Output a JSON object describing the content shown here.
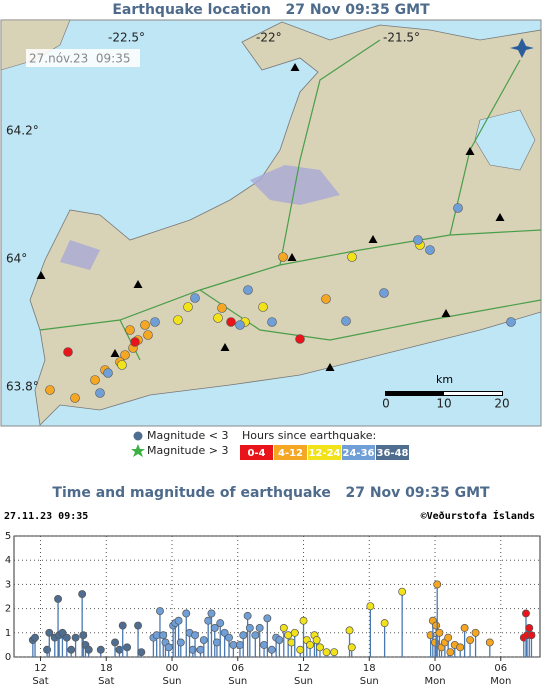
{
  "map": {
    "title": "Earthquake location   27 Nov 09:35 GMT",
    "timestamp": "27.nóv.23  09:35",
    "lon_labels": [
      "-22.5°",
      "-22°",
      "-21.5°"
    ],
    "lat_labels": [
      "64.2°",
      "64°",
      "63.8°"
    ],
    "scale_unit": "km",
    "scale_labels": [
      "0",
      "10",
      "20"
    ],
    "legend_small": "Magnitude < 3",
    "legend_large": "Magnitude > 3",
    "legend_hours_title": "Hours since earthquake:"
  },
  "chart_data": {
    "type": "stem",
    "title": "Time and magnitude of earthquake   27 Nov 09:35 GMT",
    "timestamp": "27.11.23 09:35",
    "credit": "©Veðurstofa Íslands",
    "xlim": [
      9.58,
      57.58
    ],
    "xticks": [
      12,
      18,
      {
        "value": 24,
        "label": "00"
      },
      {
        "value": 30,
        "label": "06"
      },
      {
        "value": 36,
        "label": "12"
      },
      {
        "value": 42,
        "label": "18"
      },
      {
        "value": 48,
        "label": "00"
      },
      {
        "value": 54,
        "label": "06"
      }
    ],
    "xtick_days": [
      "Sat",
      "Sat",
      "Sun",
      "Sun",
      "Sun",
      "Sun",
      "Mon",
      "Mon"
    ],
    "ylim": [
      0,
      5
    ],
    "yticks": [
      0,
      1,
      2,
      3,
      4,
      5
    ],
    "grid": true,
    "series": [
      {
        "name": "36-48",
        "color": "#4f6d8f",
        "x": [
          11.3,
          11.5,
          12.6,
          12.8,
          13.3,
          13.6,
          13.7,
          14.0,
          14.4,
          14.8,
          15.2,
          15.8,
          15.9,
          16.1,
          16.4,
          17.5,
          18.8,
          19.2,
          19.5,
          19.9,
          20.9,
          21.2
        ],
        "values": [
          0.7,
          0.8,
          0.3,
          1.0,
          0.8,
          2.4,
          0.9,
          1.0,
          0.8,
          0.3,
          0.8,
          2.6,
          0.9,
          0.5,
          0.3,
          0.3,
          0.6,
          0.3,
          1.3,
          0.4,
          1.3,
          0.2
        ]
      },
      {
        "name": "24-36",
        "color": "#6f9fd6",
        "x": [
          22.3,
          22.6,
          22.9,
          23.2,
          23.4,
          23.7,
          24.1,
          24.3,
          24.6,
          24.8,
          25.3,
          25.6,
          25.9,
          26.1,
          26.6,
          26.9,
          27.3,
          27.6,
          27.9,
          28.1,
          28.4,
          28.8,
          29.2,
          29.6,
          30.2,
          30.5,
          30.9,
          31.1,
          31.6,
          32.0,
          32.4,
          32.7,
          33.1,
          33.5,
          33.8
        ],
        "values": [
          0.8,
          0.9,
          1.9,
          0.9,
          0.6,
          0.4,
          1.3,
          1.4,
          1.5,
          0.6,
          1.8,
          1.0,
          0.3,
          0.9,
          0.3,
          0.7,
          1.5,
          1.8,
          1.2,
          0.6,
          1.4,
          1.0,
          0.8,
          0.5,
          0.5,
          0.9,
          1.7,
          1.2,
          0.9,
          1.2,
          0.5,
          1.6,
          0.3,
          0.8,
          0.7
        ]
      },
      {
        "name": "12-24",
        "color": "#f2e21a",
        "x": [
          34.2,
          34.6,
          34.9,
          35.2,
          35.7,
          36.0,
          36.3,
          36.6,
          37.0,
          37.2,
          37.5,
          38.1,
          38.8,
          40.2,
          40.4,
          42.1,
          43.4,
          45.0
        ],
        "values": [
          1.2,
          0.9,
          0.6,
          1.0,
          0.3,
          1.5,
          0.7,
          0.5,
          0.9,
          0.7,
          0.4,
          0.2,
          0.2,
          1.1,
          0.4,
          2.1,
          1.4,
          2.7
        ]
      },
      {
        "name": "4-12",
        "color": "#f5a623",
        "x": [
          47.6,
          47.8,
          48.0,
          48.1,
          48.2,
          48.4,
          48.6,
          48.9,
          49.2,
          49.4,
          49.8,
          50.3,
          50.7,
          51.2,
          51.7,
          53.0
        ],
        "values": [
          0.9,
          1.5,
          0.6,
          1.3,
          3.0,
          1.0,
          0.4,
          0.6,
          0.8,
          0.2,
          0.5,
          0.4,
          1.2,
          0.7,
          1.0,
          0.6
        ]
      },
      {
        "name": "0-4",
        "color": "#e8141a",
        "x": [
          56.1,
          56.3,
          56.4,
          56.6,
          56.8
        ],
        "values": [
          0.8,
          1.8,
          0.9,
          1.2,
          0.9
        ]
      }
    ]
  }
}
